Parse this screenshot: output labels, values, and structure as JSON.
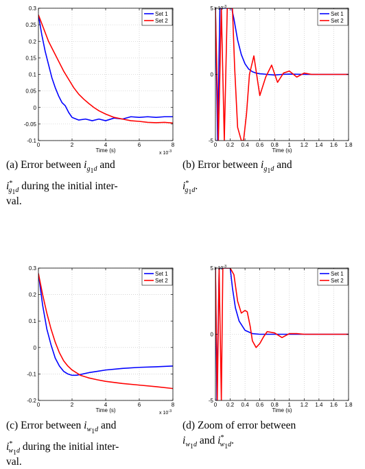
{
  "chart_data": [
    {
      "type": "line",
      "xlabel": "Time (s)",
      "x_exponent": "x 10",
      "x_exponent_power": "-3",
      "xlim": [
        0,
        8
      ],
      "ylim": [
        -0.1,
        0.3
      ],
      "xticks": [
        "0",
        "2",
        "4",
        "6",
        "8"
      ],
      "yticks": [
        "-0.1",
        "-0.05",
        "0",
        "0.05",
        "0.1",
        "0.15",
        "0.2",
        "0.25",
        "0.3"
      ],
      "grid": true,
      "legend_position": "top-right",
      "series": [
        {
          "name": "Set 1",
          "color": "#0000ff",
          "x": [
            0,
            0.2,
            0.4,
            0.6,
            0.8,
            1.0,
            1.2,
            1.4,
            1.6,
            1.8,
            2.0,
            2.4,
            2.8,
            3.2,
            3.6,
            4.0,
            4.5,
            5.0,
            5.5,
            6.0,
            6.5,
            7.0,
            7.5,
            8.0
          ],
          "y": [
            0.28,
            0.22,
            0.17,
            0.13,
            0.09,
            0.06,
            0.035,
            0.015,
            0.005,
            -0.015,
            -0.03,
            -0.038,
            -0.035,
            -0.04,
            -0.035,
            -0.04,
            -0.032,
            -0.035,
            -0.028,
            -0.03,
            -0.028,
            -0.03,
            -0.028,
            -0.028
          ]
        },
        {
          "name": "Set 2",
          "color": "#ff0000",
          "x": [
            0,
            0.3,
            0.6,
            0.9,
            1.2,
            1.5,
            1.8,
            2.1,
            2.4,
            2.7,
            3.0,
            3.3,
            3.6,
            4.0,
            4.5,
            5.0,
            5.5,
            6.0,
            6.5,
            7.0,
            7.5,
            8.0
          ],
          "y": [
            0.28,
            0.24,
            0.2,
            0.17,
            0.14,
            0.11,
            0.085,
            0.06,
            0.04,
            0.025,
            0.012,
            0.0,
            -0.01,
            -0.02,
            -0.03,
            -0.035,
            -0.04,
            -0.042,
            -0.045,
            -0.046,
            -0.045,
            -0.047
          ]
        }
      ]
    },
    {
      "type": "line",
      "xlabel": "Time (s)",
      "y_exponent": "x 10",
      "y_exponent_power": "-3",
      "xlim": [
        0,
        1.8
      ],
      "ylim": [
        -5,
        5
      ],
      "xticks": [
        "0",
        "0.2",
        "0.4",
        "0.6",
        "0.8",
        "1",
        "1.2",
        "1.4",
        "1.6",
        "1.8"
      ],
      "yticks": [
        "-5",
        "0",
        "5"
      ],
      "grid": true,
      "legend_position": "top-right",
      "series": [
        {
          "name": "Set 1",
          "color": "#0000ff",
          "x": [
            0,
            0.03,
            0.06,
            0.1,
            0.15,
            0.2,
            0.22,
            0.25,
            0.3,
            0.35,
            0.4,
            0.45,
            0.5,
            0.55,
            0.6,
            0.7,
            0.8,
            0.9,
            1.0,
            1.2,
            1.4,
            1.6,
            1.8
          ],
          "y": [
            5,
            -5,
            5,
            5,
            5,
            5,
            5,
            4.2,
            2.6,
            1.5,
            0.8,
            0.4,
            0.2,
            0.1,
            0.05,
            0.0,
            -0.05,
            0.0,
            0.02,
            0.0,
            0.0,
            0.0,
            0.0
          ]
        },
        {
          "name": "Set 2",
          "color": "#ff0000",
          "x": [
            0,
            0.04,
            0.08,
            0.12,
            0.16,
            0.2,
            0.23,
            0.26,
            0.3,
            0.35,
            0.38,
            0.42,
            0.46,
            0.52,
            0.6,
            0.68,
            0.76,
            0.84,
            0.92,
            1.0,
            1.1,
            1.2,
            1.3,
            1.5,
            1.8
          ],
          "y": [
            5,
            -5,
            5,
            -5,
            5,
            5,
            5,
            0.5,
            -4.0,
            -5,
            -5,
            -3.0,
            0.0,
            1.4,
            -1.6,
            -0.2,
            0.7,
            -0.6,
            0.1,
            0.25,
            -0.2,
            0.1,
            0.0,
            0.0,
            0.0
          ]
        }
      ]
    },
    {
      "type": "line",
      "xlabel": "Time (s)",
      "x_exponent": "x 10",
      "x_exponent_power": "-3",
      "xlim": [
        0,
        8
      ],
      "ylim": [
        -0.2,
        0.3
      ],
      "xticks": [
        "0",
        "2",
        "4",
        "6",
        "8"
      ],
      "yticks": [
        "-0.2",
        "-0.1",
        "0",
        "0.1",
        "0.2",
        "0.3"
      ],
      "grid": true,
      "legend_position": "top-right",
      "series": [
        {
          "name": "Set 1",
          "color": "#0000ff",
          "x": [
            0,
            0.25,
            0.5,
            0.75,
            1.0,
            1.25,
            1.5,
            1.75,
            2.0,
            2.25,
            2.5,
            3.0,
            3.5,
            4.0,
            5.0,
            6.0,
            7.0,
            8.0
          ],
          "y": [
            0.28,
            0.16,
            0.07,
            0.01,
            -0.04,
            -0.07,
            -0.09,
            -0.1,
            -0.105,
            -0.105,
            -0.102,
            -0.095,
            -0.09,
            -0.085,
            -0.079,
            -0.075,
            -0.073,
            -0.07
          ]
        },
        {
          "name": "Set 2",
          "color": "#ff0000",
          "x": [
            0,
            0.25,
            0.5,
            0.75,
            1.0,
            1.25,
            1.5,
            1.75,
            2.0,
            2.5,
            3.0,
            3.5,
            4.0,
            5.0,
            6.0,
            7.0,
            8.0
          ],
          "y": [
            0.28,
            0.2,
            0.13,
            0.07,
            0.02,
            -0.02,
            -0.05,
            -0.07,
            -0.085,
            -0.105,
            -0.115,
            -0.122,
            -0.128,
            -0.136,
            -0.142,
            -0.148,
            -0.155
          ]
        }
      ]
    },
    {
      "type": "line",
      "xlabel": "Time (s)",
      "y_exponent": "x 10",
      "y_exponent_power": "-3",
      "xlim": [
        0,
        1.8
      ],
      "ylim": [
        -5,
        5
      ],
      "xticks": [
        "0",
        "0.2",
        "0.4",
        "0.6",
        "0.8",
        "1",
        "1.2",
        "1.4",
        "1.6",
        "1.8"
      ],
      "yticks": [
        "-5",
        "0",
        "5"
      ],
      "grid": true,
      "legend_position": "top-right",
      "series": [
        {
          "name": "Set 1",
          "color": "#0000ff",
          "x": [
            0,
            0.02,
            0.05,
            0.1,
            0.15,
            0.2,
            0.23,
            0.27,
            0.32,
            0.4,
            0.5,
            0.6,
            0.8,
            1.0,
            1.4,
            1.8
          ],
          "y": [
            5,
            -5,
            5,
            5,
            5,
            5,
            3.5,
            2.0,
            1.0,
            0.3,
            0.05,
            0.0,
            0.0,
            0.0,
            0.0,
            0.0
          ]
        },
        {
          "name": "Set 2",
          "color": "#ff0000",
          "x": [
            0,
            0.025,
            0.05,
            0.08,
            0.1,
            0.15,
            0.2,
            0.25,
            0.3,
            0.35,
            0.4,
            0.43,
            0.47,
            0.5,
            0.55,
            0.6,
            0.65,
            0.7,
            0.8,
            0.9,
            1.0,
            1.1,
            1.2,
            1.4,
            1.8
          ],
          "y": [
            5,
            -5,
            5,
            -5,
            5,
            5,
            5,
            4.5,
            2.5,
            1.6,
            1.8,
            1.7,
            0.6,
            -0.5,
            -1.0,
            -0.7,
            -0.2,
            0.2,
            0.1,
            -0.25,
            0.05,
            0.05,
            0.0,
            0.0,
            0.0
          ]
        }
      ]
    }
  ],
  "captions": [
    {
      "prefix": "(a) Error between ",
      "sym": "g",
      "mid": " and ",
      "suffix": " during the initial inter-",
      "line3": "val."
    },
    {
      "prefix": "(b) Error between ",
      "sym": "g",
      "mid": " and ",
      "suffix": "."
    },
    {
      "prefix": "(c) Error between ",
      "sym": "w",
      "mid": " and ",
      "suffix": " during the initial inter-",
      "line3": "val."
    },
    {
      "prefix": "(d) Zoom of error between ",
      "sym": "w",
      "mid": " and ",
      "suffix": "."
    }
  ]
}
